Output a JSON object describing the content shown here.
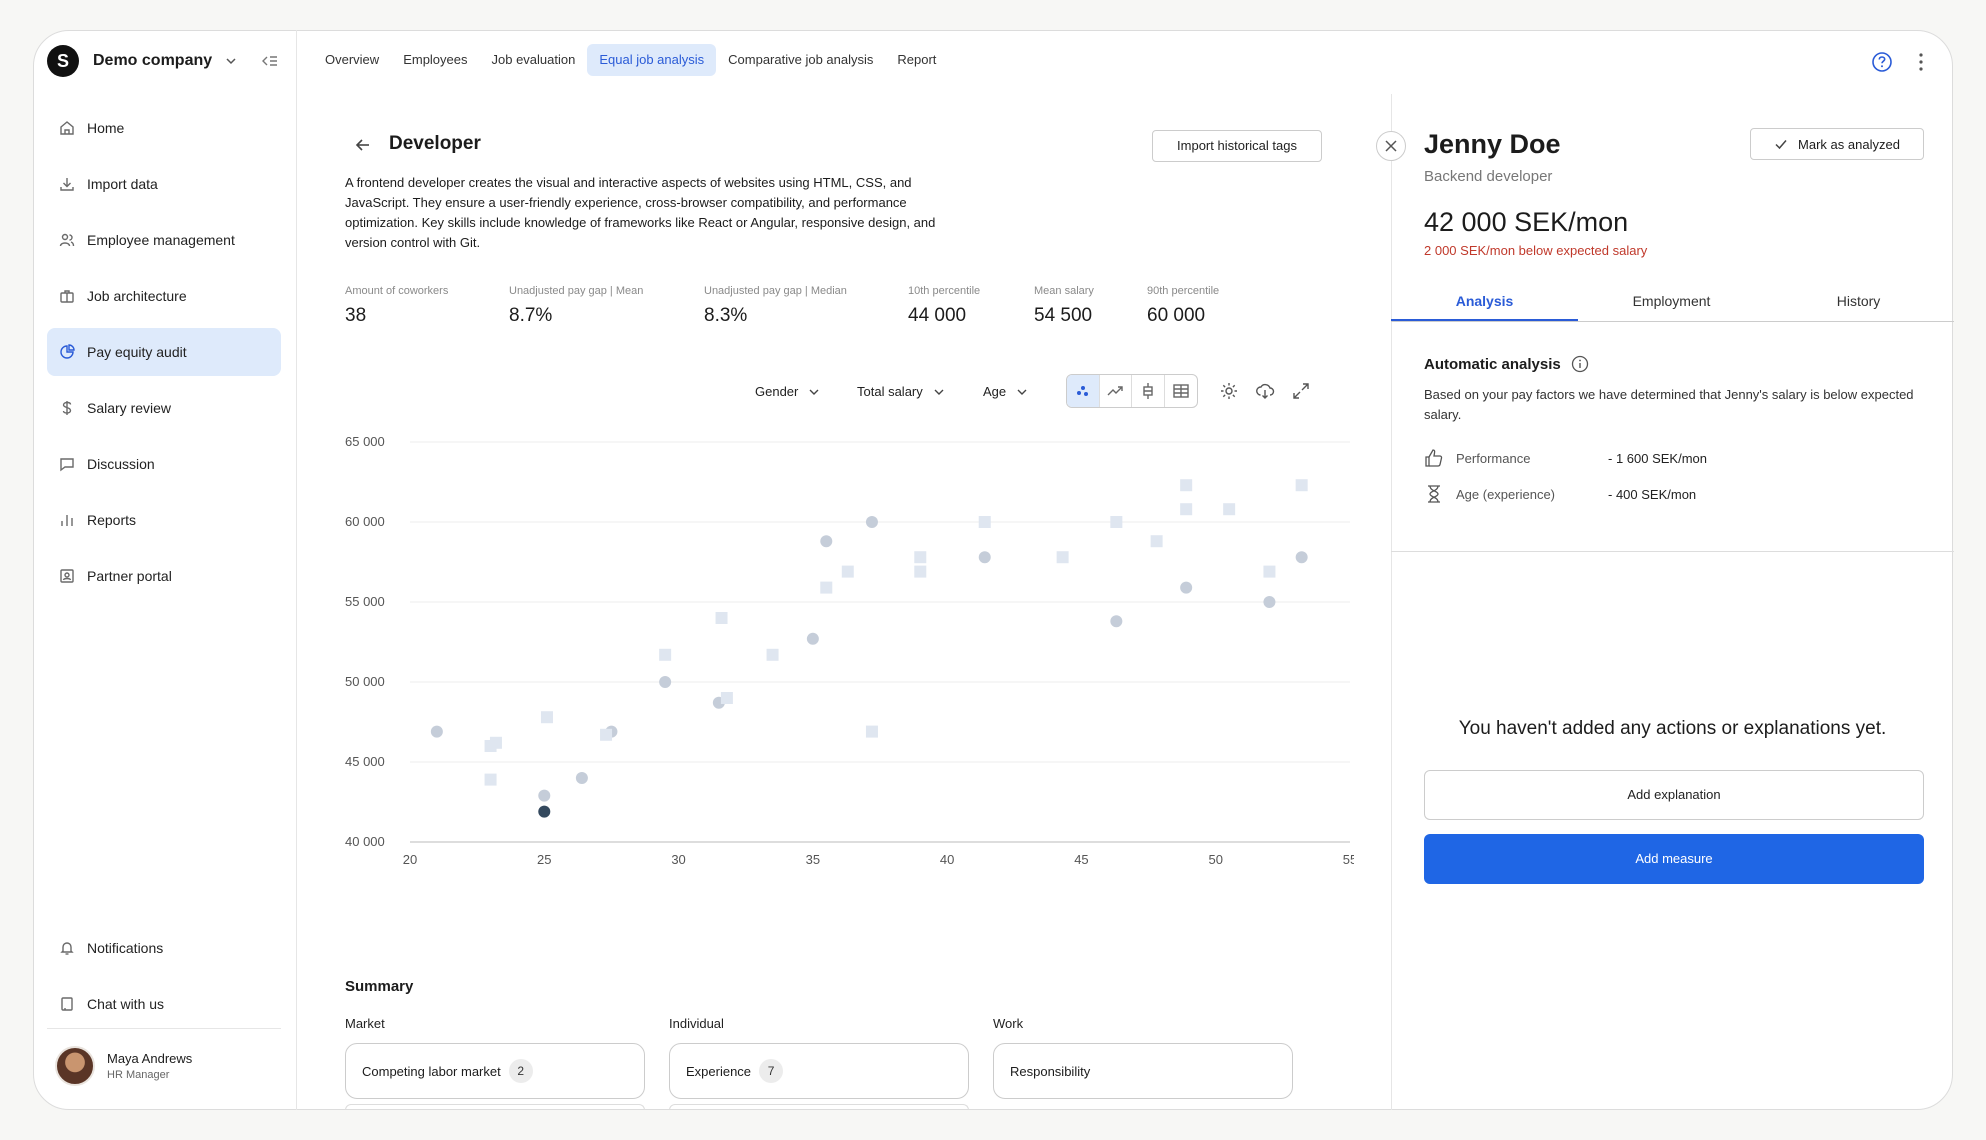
{
  "company": {
    "logo_letter": "S",
    "name": "Demo company"
  },
  "sidebar": {
    "items": [
      {
        "label": "Home",
        "icon": "home-icon"
      },
      {
        "label": "Import data",
        "icon": "download-icon"
      },
      {
        "label": "Employee management",
        "icon": "users-icon"
      },
      {
        "label": "Job architecture",
        "icon": "briefcase-icon"
      },
      {
        "label": "Pay equity audit",
        "icon": "pie-chart-icon",
        "active": true
      },
      {
        "label": "Salary review",
        "icon": "dollar-icon"
      },
      {
        "label": "Discussion",
        "icon": "message-icon"
      },
      {
        "label": "Reports",
        "icon": "bar-chart-icon"
      },
      {
        "label": "Partner portal",
        "icon": "portal-icon"
      }
    ],
    "bottom_items": [
      {
        "label": "Notifications",
        "icon": "bell-icon"
      },
      {
        "label": "Chat with us",
        "icon": "chat-icon"
      }
    ],
    "user": {
      "name": "Maya Andrews",
      "role": "HR Manager"
    }
  },
  "topnav": {
    "tabs": [
      "Overview",
      "Employees",
      "Job evaluation",
      "Equal job analysis",
      "Comparative job analysis",
      "Report"
    ],
    "active": "Equal job analysis"
  },
  "main": {
    "title": "Developer",
    "import_button": "Import historical tags",
    "description": "A frontend developer creates the visual and interactive aspects of websites using HTML, CSS, and JavaScript. They ensure a user-friendly experience, cross-browser compatibility, and performance optimization. Key skills include knowledge of frameworks like React or Angular, responsive design, and version control with Git.",
    "stats": [
      {
        "label": "Amount of coworkers",
        "value": "38"
      },
      {
        "label": "Unadjusted pay gap | Mean",
        "value": "8.7%"
      },
      {
        "label": "Unadjusted pay gap | Median",
        "value": "8.3%"
      },
      {
        "label": "10th percentile",
        "value": "44 000"
      },
      {
        "label": "Mean salary",
        "value": "54 500"
      },
      {
        "label": "90th percentile",
        "value": "60 000"
      }
    ],
    "filters": {
      "group": "Gender",
      "metric": "Total salary",
      "axis": "Age"
    },
    "summary": {
      "title": "Summary",
      "columns": [
        {
          "label": "Market",
          "chip": "Competing labor market",
          "count": "2"
        },
        {
          "label": "Individual",
          "chip": "Experience",
          "count": "7"
        },
        {
          "label": "Work",
          "chip": "Responsibility",
          "count": ""
        }
      ]
    }
  },
  "chart_data": {
    "type": "scatter",
    "xlim": [
      20,
      55
    ],
    "ylim": [
      40000,
      65000
    ],
    "x_ticks": [
      "20",
      "25",
      "30",
      "35",
      "40",
      "45",
      "50",
      "55"
    ],
    "y_ticks": [
      "40 000",
      "45 000",
      "50 000",
      "55 000",
      "60 000",
      "65 000"
    ],
    "grid": true,
    "series": [
      {
        "marker": "circle",
        "color": "#c5cdd9",
        "points": [
          [
            21,
            46900
          ],
          [
            25,
            42900
          ],
          [
            26.4,
            44000
          ],
          [
            27.5,
            46900
          ],
          [
            29.5,
            50000
          ],
          [
            31.5,
            48700
          ],
          [
            35,
            52700
          ],
          [
            35.5,
            58800
          ],
          [
            37.2,
            60000
          ],
          [
            41.4,
            57800
          ],
          [
            46.3,
            53800
          ],
          [
            48.9,
            55900
          ],
          [
            52,
            55000
          ],
          [
            53.2,
            57800
          ]
        ]
      },
      {
        "marker": "square",
        "color": "#dfe6f0",
        "points": [
          [
            23,
            46000
          ],
          [
            23.2,
            46200
          ],
          [
            23,
            43900
          ],
          [
            25.1,
            47800
          ],
          [
            27.3,
            46700
          ],
          [
            29.5,
            51700
          ],
          [
            31.6,
            54000
          ],
          [
            31.8,
            49000
          ],
          [
            33.5,
            51700
          ],
          [
            35.5,
            55900
          ],
          [
            36.3,
            56900
          ],
          [
            37.2,
            46900
          ],
          [
            39,
            57800
          ],
          [
            39,
            56900
          ],
          [
            41.4,
            60000
          ],
          [
            44.3,
            57800
          ],
          [
            46.3,
            60000
          ],
          [
            47.8,
            58800
          ],
          [
            48.9,
            62300
          ],
          [
            48.9,
            60800
          ],
          [
            50.5,
            60800
          ],
          [
            52,
            56900
          ],
          [
            53.2,
            62300
          ]
        ]
      },
      {
        "marker": "circle",
        "color": "#34495e",
        "highlight": true,
        "points": [
          [
            25,
            41900
          ]
        ]
      }
    ]
  },
  "panel": {
    "name": "Jenny Doe",
    "job_title": "Backend developer",
    "mark_button": "Mark as analyzed",
    "salary": "42 000 SEK/mon",
    "salary_note": "2 000 SEK/mon below expected salary",
    "tabs": [
      "Analysis",
      "Employment",
      "History"
    ],
    "active_tab": "Analysis",
    "analysis_title": "Automatic analysis",
    "analysis_text": "Based on your pay factors we have determined that Jenny's salary is below expected salary.",
    "factors": [
      {
        "label": "Performance",
        "value": "- 1 600 SEK/mon",
        "icon": "thumbs-up-icon"
      },
      {
        "label": "Age (experience)",
        "value": "- 400 SEK/mon",
        "icon": "hourglass-icon"
      }
    ],
    "empty_message": "You haven't added any actions or explanations yet.",
    "add_explanation": "Add explanation",
    "add_measure": "Add measure"
  }
}
